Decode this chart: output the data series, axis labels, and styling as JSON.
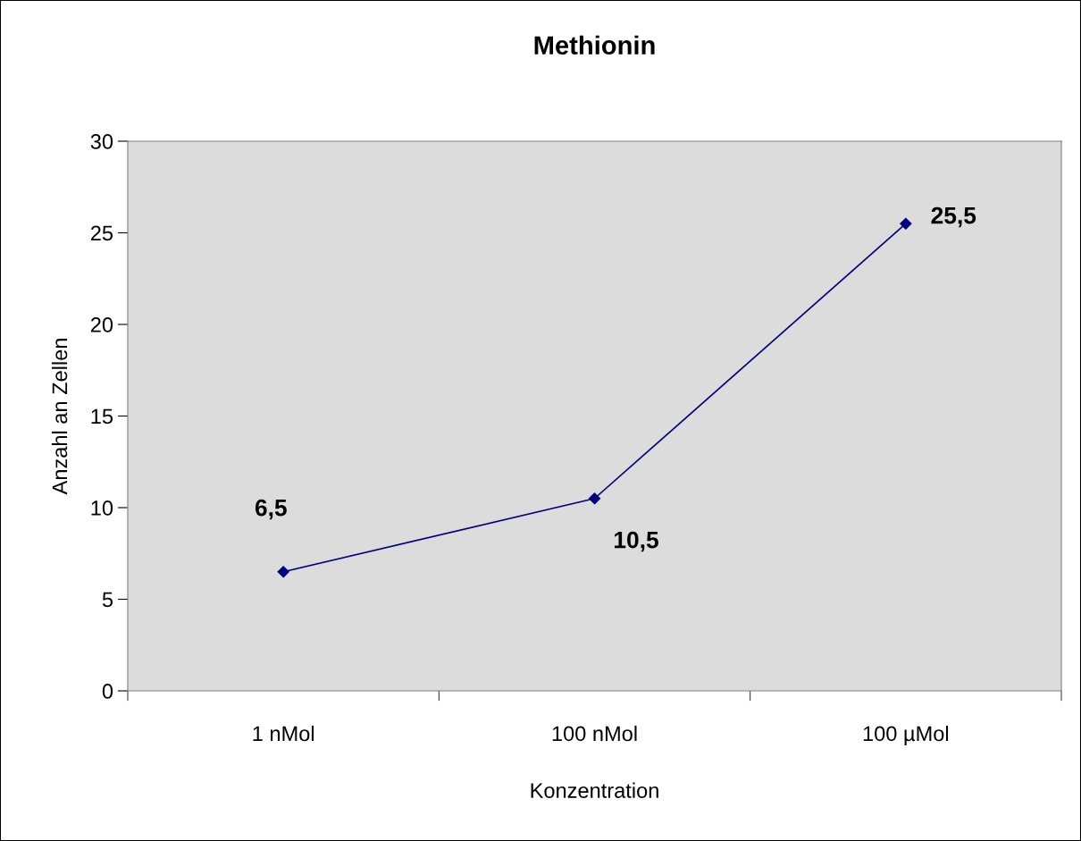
{
  "chart_data": {
    "type": "line",
    "title": "Methionin",
    "xlabel": "Konzentration",
    "ylabel": "Anzahl an Zellen",
    "categories": [
      "1 nMol",
      "100 nMol",
      "100 µMol"
    ],
    "series": [
      {
        "color": "#000080",
        "values": [
          6.5,
          10.5,
          25.5
        ],
        "value_labels": [
          "6,5",
          "10,5",
          "25,5"
        ]
      }
    ],
    "ylim": [
      0,
      30
    ],
    "yticks": [
      0,
      5,
      10,
      15,
      20,
      25,
      30
    ],
    "grid": false,
    "legend": false,
    "marker": "diamond",
    "line_style": "solid"
  }
}
